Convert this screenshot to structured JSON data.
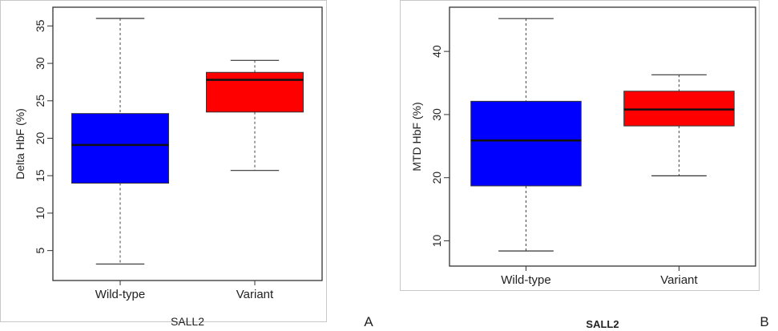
{
  "panels": [
    {
      "letter": "A",
      "chart_data": {
        "type": "box",
        "title": "",
        "xlabel": "SALL2",
        "ylabel": "Delta HbF (%)",
        "categories": [
          "Wild-type",
          "Variant"
        ],
        "ylim": [
          1,
          37.5
        ],
        "yticks": [
          5,
          10,
          15,
          20,
          25,
          30,
          35
        ],
        "boxes": [
          {
            "category": "Wild-type",
            "min": 3.2,
            "q1": 14,
            "median": 19.1,
            "q3": 23.3,
            "max": 36,
            "color": "#0000ff"
          },
          {
            "category": "Variant",
            "min": 15.7,
            "q1": 23.5,
            "median": 27.8,
            "q3": 28.8,
            "max": 30.4,
            "color": "#ff0000"
          }
        ],
        "grid": false
      }
    },
    {
      "letter": "B",
      "chart_data": {
        "type": "box",
        "title": "",
        "xlabel": "SALL2",
        "ylabel": "MTD HbF (%)",
        "categories": [
          "Wild-type",
          "Variant"
        ],
        "ylim": [
          6,
          47
        ],
        "yticks": [
          10,
          20,
          30,
          40
        ],
        "boxes": [
          {
            "category": "Wild-type",
            "min": 8.4,
            "q1": 18.7,
            "median": 25.9,
            "q3": 32.1,
            "max": 45.2,
            "color": "#0000ff"
          },
          {
            "category": "Variant",
            "min": 20.3,
            "q1": 28.2,
            "median": 30.8,
            "q3": 33.7,
            "max": 36.3,
            "color": "#ff0000"
          }
        ],
        "grid": false
      }
    }
  ]
}
